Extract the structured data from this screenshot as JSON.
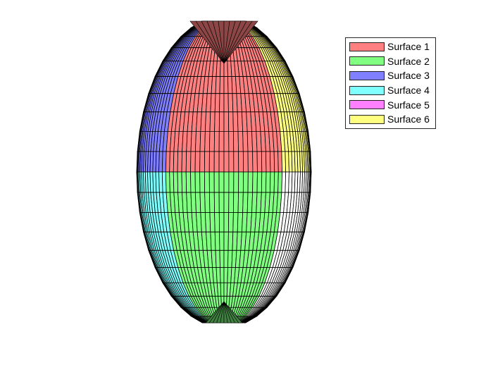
{
  "chart_data": {
    "type": "surface",
    "title": "",
    "shape": "ellipsoid",
    "axes_visible": false,
    "view": "side",
    "legend_placement": "top-right",
    "series": [
      {
        "name": "Surface 1",
        "color": "#ff8080",
        "region": "upper-front"
      },
      {
        "name": "Surface 2",
        "color": "#80ff80",
        "region": "lower-front"
      },
      {
        "name": "Surface 3",
        "color": "#8080ff",
        "region": "upper-left"
      },
      {
        "name": "Surface 4",
        "color": "#80ffff",
        "region": "lower-left"
      },
      {
        "name": "Surface 5",
        "color": "#ff80ff",
        "region": "lower-right"
      },
      {
        "name": "Surface 6",
        "color": "#ffff80",
        "region": "upper-right"
      }
    ],
    "edge_color": "#000000"
  }
}
